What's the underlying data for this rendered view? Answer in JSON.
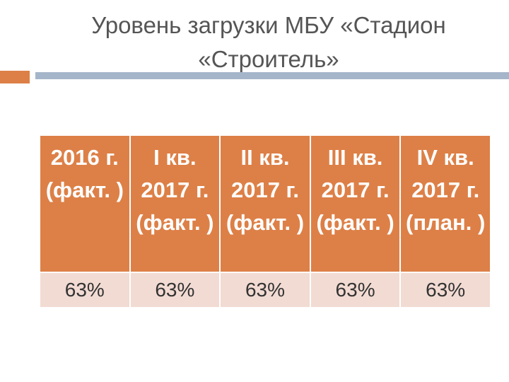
{
  "header": {
    "title": "Уровень загрузки МБУ «Стадион «Строитель»"
  },
  "table": {
    "rows": [
      [
        "2016 г. (факт. )",
        "I кв. 2017 г. (факт. )",
        "II кв. 2017 г. (факт. )",
        "III кв. 2017 г. (факт. )",
        "IV кв. 2017 г. (план. )"
      ],
      [
        "63%",
        "63%",
        "63%",
        "63%",
        "63%"
      ]
    ]
  }
}
